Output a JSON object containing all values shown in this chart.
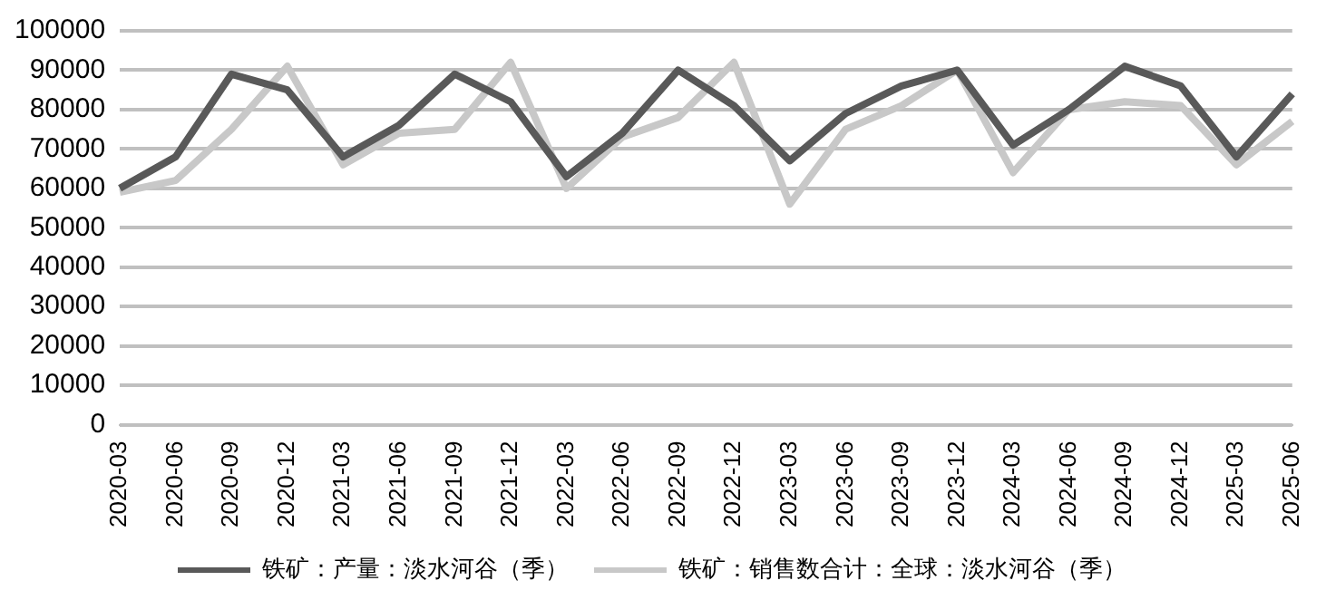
{
  "chart_data": {
    "type": "line",
    "categories": [
      "2020-03",
      "2020-06",
      "2020-09",
      "2020-12",
      "2021-03",
      "2021-06",
      "2021-09",
      "2021-12",
      "2022-03",
      "2022-06",
      "2022-09",
      "2022-12",
      "2023-03",
      "2023-06",
      "2023-09",
      "2023-12",
      "2024-03",
      "2024-06",
      "2024-09",
      "2024-12",
      "2025-03",
      "2025-06"
    ],
    "series": [
      {
        "name": "铁矿：产量：淡水河谷（季）",
        "color": "#595959",
        "values": [
          60000,
          68000,
          89000,
          85000,
          68000,
          76000,
          89000,
          82000,
          63000,
          74000,
          90000,
          81000,
          67000,
          79000,
          86000,
          90000,
          71000,
          80000,
          91000,
          86000,
          68000,
          84000
        ]
      },
      {
        "name": "铁矿：销售数合计：全球：淡水河谷（季）",
        "color": "#c8c8c8",
        "values": [
          59000,
          62000,
          75000,
          91000,
          66000,
          74000,
          75000,
          92000,
          60000,
          73000,
          78000,
          92000,
          56000,
          75000,
          81000,
          90000,
          64000,
          80000,
          82000,
          81000,
          66000,
          77000
        ]
      }
    ],
    "ylim": [
      0,
      100000
    ],
    "yticks": [
      0,
      10000,
      20000,
      30000,
      40000,
      50000,
      60000,
      70000,
      80000,
      90000,
      100000
    ],
    "grid": "y",
    "legend": "bottom",
    "marker": "none",
    "line_style": "solid"
  }
}
